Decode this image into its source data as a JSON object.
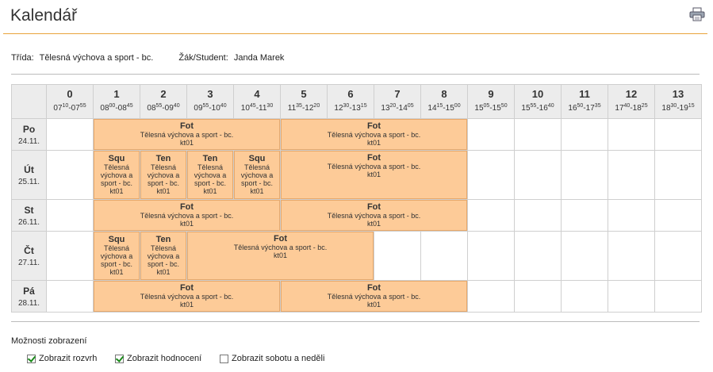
{
  "page": {
    "title": "Kalendář"
  },
  "info": {
    "class_label": "Třída:",
    "class_value": "Tělesná výchova a sport - bc.",
    "student_label": "Žák/Student:",
    "student_value": "Janda Marek"
  },
  "periods": [
    {
      "num": "0",
      "start_h": "07",
      "start_m": "10",
      "end_h": "07",
      "end_m": "55"
    },
    {
      "num": "1",
      "start_h": "08",
      "start_m": "00",
      "end_h": "08",
      "end_m": "45"
    },
    {
      "num": "2",
      "start_h": "08",
      "start_m": "55",
      "end_h": "09",
      "end_m": "40"
    },
    {
      "num": "3",
      "start_h": "09",
      "start_m": "55",
      "end_h": "10",
      "end_m": "40"
    },
    {
      "num": "4",
      "start_h": "10",
      "start_m": "45",
      "end_h": "11",
      "end_m": "30"
    },
    {
      "num": "5",
      "start_h": "11",
      "start_m": "35",
      "end_h": "12",
      "end_m": "20"
    },
    {
      "num": "6",
      "start_h": "12",
      "start_m": "30",
      "end_h": "13",
      "end_m": "15"
    },
    {
      "num": "7",
      "start_h": "13",
      "start_m": "20",
      "end_h": "14",
      "end_m": "05"
    },
    {
      "num": "8",
      "start_h": "14",
      "start_m": "15",
      "end_h": "15",
      "end_m": "00"
    },
    {
      "num": "9",
      "start_h": "15",
      "start_m": "05",
      "end_h": "15",
      "end_m": "50"
    },
    {
      "num": "10",
      "start_h": "15",
      "start_m": "55",
      "end_h": "16",
      "end_m": "40"
    },
    {
      "num": "11",
      "start_h": "16",
      "start_m": "50",
      "end_h": "17",
      "end_m": "35"
    },
    {
      "num": "12",
      "start_h": "17",
      "start_m": "40",
      "end_h": "18",
      "end_m": "25"
    },
    {
      "num": "13",
      "start_h": "18",
      "start_m": "30",
      "end_h": "19",
      "end_m": "15"
    }
  ],
  "days": [
    {
      "name": "Po",
      "date": "24.11.",
      "events": [
        {
          "start": 1,
          "span": 4,
          "abbr": "Fot",
          "name": "Tělesná výchova a sport - bc.",
          "room": "kt01"
        },
        {
          "start": 5,
          "span": 4,
          "abbr": "Fot",
          "name": "Tělesná výchova a sport - bc.",
          "room": "kt01"
        }
      ]
    },
    {
      "name": "Út",
      "date": "25.11.",
      "events": [
        {
          "start": 1,
          "span": 1,
          "abbr": "Squ",
          "name": "Tělesná výchova a sport - bc.",
          "room": "kt01"
        },
        {
          "start": 2,
          "span": 1,
          "abbr": "Ten",
          "name": "Tělesná výchova a sport - bc.",
          "room": "kt01"
        },
        {
          "start": 3,
          "span": 1,
          "abbr": "Ten",
          "name": "Tělesná výchova a sport - bc.",
          "room": "kt01"
        },
        {
          "start": 4,
          "span": 1,
          "abbr": "Squ",
          "name": "Tělesná výchova a sport - bc.",
          "room": "kt01"
        },
        {
          "start": 5,
          "span": 4,
          "abbr": "Fot",
          "name": "Tělesná výchova a sport - bc.",
          "room": "kt01"
        }
      ]
    },
    {
      "name": "St",
      "date": "26.11.",
      "events": [
        {
          "start": 1,
          "span": 4,
          "abbr": "Fot",
          "name": "Tělesná výchova a sport - bc.",
          "room": "kt01"
        },
        {
          "start": 5,
          "span": 4,
          "abbr": "Fot",
          "name": "Tělesná výchova a sport - bc.",
          "room": "kt01"
        }
      ]
    },
    {
      "name": "Čt",
      "date": "27.11.",
      "events": [
        {
          "start": 1,
          "span": 1,
          "abbr": "Squ",
          "name": "Tělesná výchova a sport - bc.",
          "room": "kt01"
        },
        {
          "start": 2,
          "span": 1,
          "abbr": "Ten",
          "name": "Tělesná výchova a sport - bc.",
          "room": "kt01"
        },
        {
          "start": 3,
          "span": 4,
          "abbr": "Fot",
          "name": "Tělesná výchova a sport - bc.",
          "room": "kt01"
        }
      ]
    },
    {
      "name": "Pá",
      "date": "28.11.",
      "events": [
        {
          "start": 1,
          "span": 4,
          "abbr": "Fot",
          "name": "Tělesná výchova a sport - bc.",
          "room": "kt01"
        },
        {
          "start": 5,
          "span": 4,
          "abbr": "Fot",
          "name": "Tělesná výchova a sport - bc.",
          "room": "kt01"
        }
      ]
    }
  ],
  "options": {
    "title": "Možnosti zobrazení",
    "items": [
      {
        "label": "Zobrazit rozvrh",
        "checked": true
      },
      {
        "label": "Zobrazit hodnocení",
        "checked": true
      },
      {
        "label": "Zobrazit sobotu a neděli",
        "checked": false
      }
    ]
  }
}
